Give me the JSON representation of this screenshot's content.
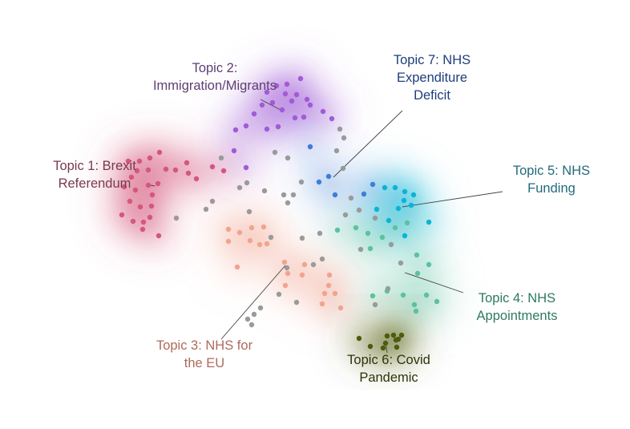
{
  "chart_data": {
    "type": "scatter",
    "title": "",
    "xlabel": "",
    "ylabel": "",
    "grid": false,
    "legend": "none",
    "series": [
      {
        "label": [
          "Topic 1: Brexit",
          "Referendum"
        ],
        "color": "#d4577f",
        "points": [
          [
            160,
            201
          ],
          [
            174,
            201
          ],
          [
            187,
            197
          ],
          [
            199,
            190
          ],
          [
            207,
            211
          ],
          [
            219,
            212
          ],
          [
            233,
            203
          ],
          [
            235,
            216
          ],
          [
            197,
            229
          ],
          [
            185,
            212
          ],
          [
            171,
            213
          ],
          [
            164,
            221
          ],
          [
            155,
            233
          ],
          [
            169,
            237
          ],
          [
            185,
            231
          ],
          [
            190,
            243
          ],
          [
            162,
            251
          ],
          [
            175,
            258
          ],
          [
            189,
            257
          ],
          [
            152,
            268
          ],
          [
            166,
            276
          ],
          [
            179,
            277
          ],
          [
            187,
            271
          ],
          [
            178,
            286
          ],
          [
            198,
            294
          ],
          [
            245,
            223
          ],
          [
            265,
            208
          ],
          [
            279,
            213
          ]
        ]
      },
      {
        "label": [
          "Topic 2:",
          "Immigration/Migrants"
        ],
        "color": "#a05bd6",
        "points": [
          [
            375,
            98
          ],
          [
            358,
            105
          ],
          [
            345,
            107
          ],
          [
            333,
            115
          ],
          [
            356,
            117
          ],
          [
            370,
            118
          ],
          [
            383,
            124
          ],
          [
            340,
            128
          ],
          [
            327,
            131
          ],
          [
            317,
            142
          ],
          [
            364,
            126
          ],
          [
            387,
            131
          ],
          [
            352,
            137
          ],
          [
            368,
            147
          ],
          [
            379,
            146
          ],
          [
            403,
            139
          ],
          [
            414,
            148
          ],
          [
            347,
            158
          ],
          [
            333,
            161
          ],
          [
            307,
            157
          ],
          [
            294,
            162
          ],
          [
            292,
            188
          ],
          [
            307,
            209
          ]
        ]
      },
      {
        "label": [
          "Topic 3: NHS for",
          "the EU"
        ],
        "color": "#f0a48f",
        "points": [
          [
            285,
            286
          ],
          [
            299,
            290
          ],
          [
            314,
            284
          ],
          [
            329,
            283
          ],
          [
            285,
            301
          ],
          [
            312,
            300
          ],
          [
            324,
            305
          ],
          [
            333,
            304
          ],
          [
            296,
            333
          ],
          [
            355,
            327
          ],
          [
            380,
            330
          ],
          [
            359,
            341
          ],
          [
            377,
            343
          ],
          [
            411,
            343
          ],
          [
            356,
            356
          ],
          [
            410,
            356
          ],
          [
            405,
            366
          ],
          [
            418,
            366
          ],
          [
            402,
            379
          ],
          [
            425,
            384
          ]
        ]
      },
      {
        "label": [
          "Topic 4: NHS",
          "Appointments"
        ],
        "color": "#5cc1a0",
        "points": [
          [
            421,
            287
          ],
          [
            444,
            284
          ],
          [
            459,
            291
          ],
          [
            477,
            296
          ],
          [
            462,
            310
          ],
          [
            493,
            284
          ],
          [
            508,
            278
          ],
          [
            520,
            318
          ],
          [
            535,
            330
          ],
          [
            521,
            341
          ],
          [
            483,
            363
          ],
          [
            465,
            369
          ],
          [
            503,
            368
          ],
          [
            532,
            368
          ],
          [
            517,
            380
          ],
          [
            545,
            376
          ],
          [
            519,
            388
          ]
        ]
      },
      {
        "label": [
          "Topic 5: NHS",
          "Funding"
        ],
        "color": "#0ab4d6",
        "points": [
          [
            480,
            234
          ],
          [
            493,
            234
          ],
          [
            505,
            239
          ],
          [
            516,
            243
          ],
          [
            504,
            250
          ],
          [
            513,
            256
          ],
          [
            497,
            260
          ],
          [
            470,
            261
          ],
          [
            485,
            275
          ],
          [
            505,
            294
          ],
          [
            535,
            277
          ]
        ]
      },
      {
        "label": [
          "Topic 6: Covid",
          "Pandemic"
        ],
        "color": "#4e5a0e",
        "points": [
          [
            448,
            422
          ],
          [
            462,
            432
          ],
          [
            483,
            419
          ],
          [
            491,
            418
          ],
          [
            501,
            418
          ],
          [
            494,
            424
          ],
          [
            481,
            428
          ],
          [
            478,
            434
          ],
          [
            495,
            433
          ],
          [
            497,
            423
          ]
        ]
      },
      {
        "label": [
          "Topic 7: NHS",
          "Expenditure",
          "Deficit"
        ],
        "color": "#3d7fd6",
        "points": [
          [
            387,
            183
          ],
          [
            410,
            220
          ],
          [
            398,
            227
          ],
          [
            418,
            243
          ],
          [
            465,
            230
          ],
          [
            454,
            242
          ]
        ]
      },
      {
        "label": [],
        "color": "#9a9a9a",
        "points": [
          [
            424,
            161
          ],
          [
            429,
            172
          ],
          [
            420,
            188
          ],
          [
            343,
            190
          ],
          [
            359,
            197
          ],
          [
            276,
            197
          ],
          [
            308,
            228
          ],
          [
            299,
            234
          ],
          [
            330,
            238
          ],
          [
            354,
            243
          ],
          [
            366,
            243
          ],
          [
            359,
            253
          ],
          [
            265,
            251
          ],
          [
            257,
            261
          ],
          [
            220,
            272
          ],
          [
            311,
            264
          ],
          [
            338,
            296
          ],
          [
            377,
            297
          ],
          [
            399,
            291
          ],
          [
            431,
            268
          ],
          [
            448,
            262
          ],
          [
            468,
            272
          ],
          [
            450,
            311
          ],
          [
            402,
            323
          ],
          [
            391,
            330
          ],
          [
            358,
            334
          ],
          [
            348,
            367
          ],
          [
            370,
            377
          ],
          [
            500,
            328
          ],
          [
            488,
            305
          ],
          [
            484,
            360
          ],
          [
            468,
            380
          ],
          [
            325,
            384
          ],
          [
            317,
            392
          ],
          [
            309,
            398
          ],
          [
            314,
            405
          ],
          [
            428,
            210
          ],
          [
            438,
            247
          ],
          [
            376,
            227
          ]
        ]
      }
    ]
  }
}
